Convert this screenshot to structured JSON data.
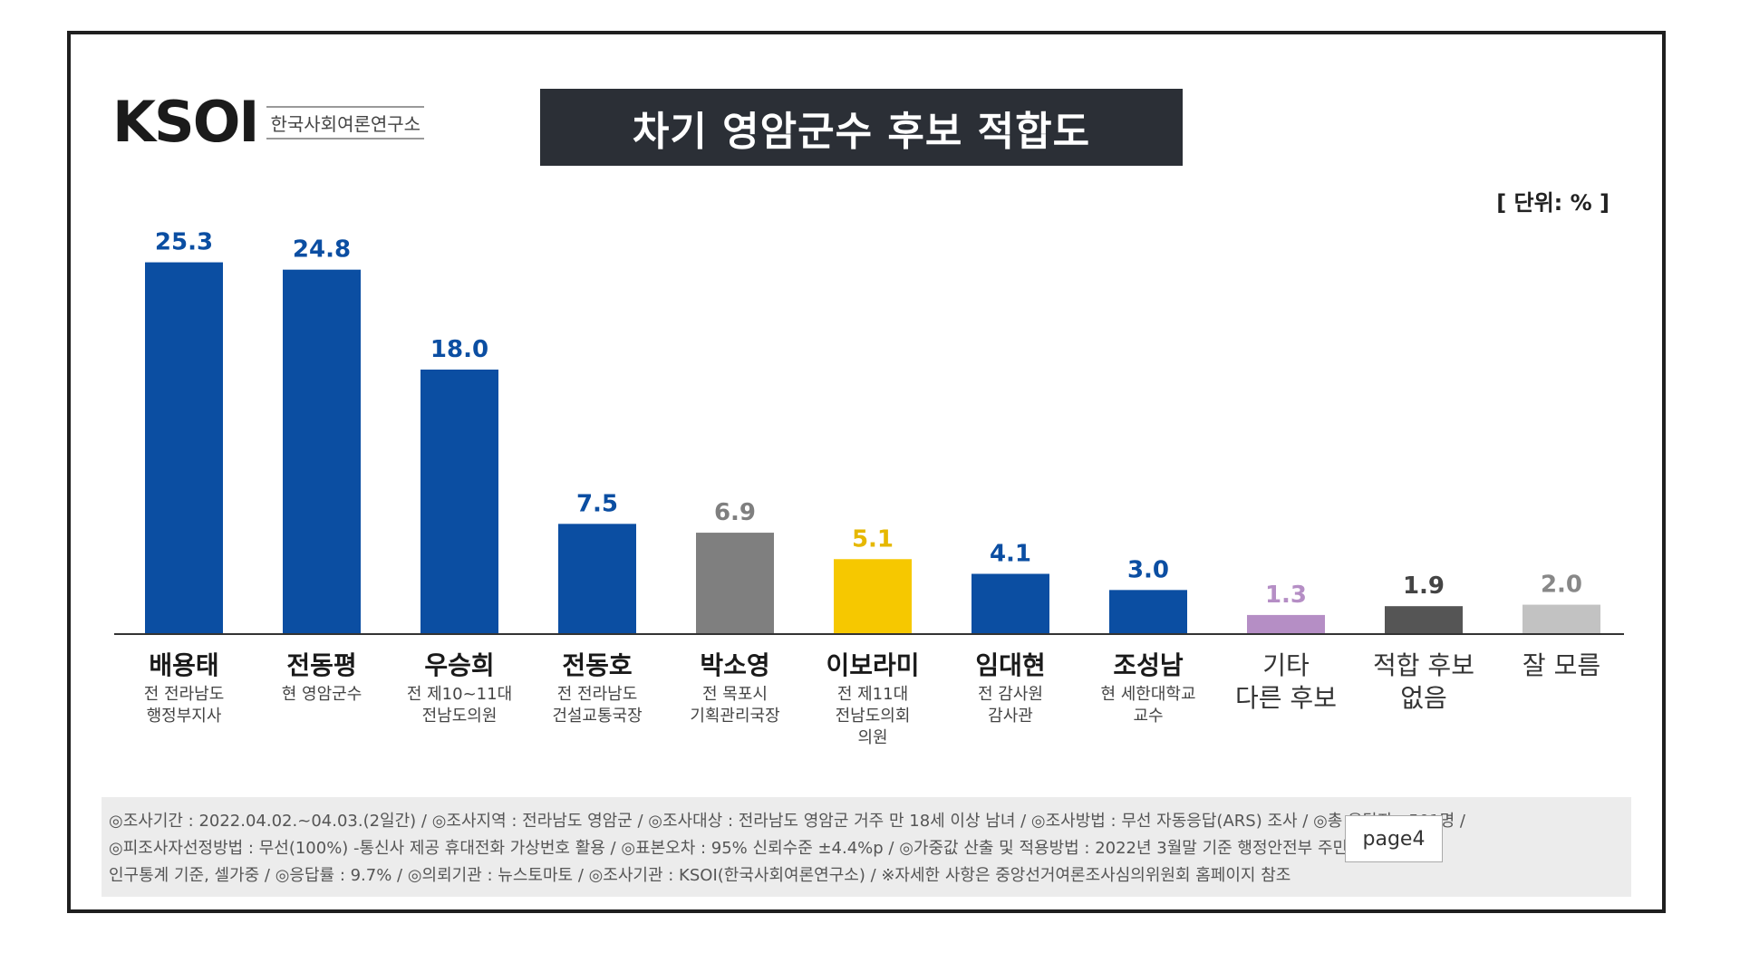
{
  "logo": {
    "mark": "KSOI",
    "subtitle": "한국사회여론연구소"
  },
  "title": "차기 영암군수 후보 적합도",
  "unit": "[ 단위: % ]",
  "colors": {
    "blue": "#0b4ea2",
    "gray": "#7f7f7f",
    "yellow": "#f6c800",
    "purple": "#b58ec5",
    "darkgray": "#555555",
    "lightgray": "#c2c2c2"
  },
  "chart_data": {
    "type": "bar",
    "categories": [
      "배용태",
      "전동평",
      "우승희",
      "전동호",
      "박소영",
      "이보라미",
      "임대현",
      "조성남",
      "기타 다른 후보",
      "적합 후보 없음",
      "잘 모름"
    ],
    "values": [
      25.3,
      24.8,
      18.0,
      7.5,
      6.9,
      5.1,
      4.1,
      3.0,
      1.3,
      1.9,
      2.0
    ],
    "value_labels": [
      "25.3",
      "24.8",
      "18.0",
      "7.5",
      "6.9",
      "5.1",
      "4.1",
      "3.0",
      "1.3",
      "1.9",
      "2.0"
    ],
    "bar_colors": [
      "#0b4ea2",
      "#0b4ea2",
      "#0b4ea2",
      "#0b4ea2",
      "#7f7f7f",
      "#f6c800",
      "#0b4ea2",
      "#0b4ea2",
      "#b58ec5",
      "#555555",
      "#c2c2c2"
    ],
    "label_colors": [
      "#0b4ea2",
      "#0b4ea2",
      "#0b4ea2",
      "#0b4ea2",
      "#7f7f7f",
      "#e6b800",
      "#0b4ea2",
      "#0b4ea2",
      "#b58ec5",
      "#444444",
      "#888888"
    ],
    "candidates": [
      {
        "name": "배용태",
        "desc": [
          "전 전라남도",
          "행정부지사"
        ],
        "bold": true
      },
      {
        "name": "전동평",
        "desc": [
          "현 영암군수"
        ],
        "bold": true
      },
      {
        "name": "우승희",
        "desc": [
          "전 제10~11대",
          "전남도의원"
        ],
        "bold": true
      },
      {
        "name": "전동호",
        "desc": [
          "전 전라남도",
          "건설교통국장"
        ],
        "bold": true
      },
      {
        "name": "박소영",
        "desc": [
          "전 목포시",
          "기획관리국장"
        ],
        "bold": true
      },
      {
        "name": "이보라미",
        "desc": [
          "전 제11대",
          "전남도의회",
          "의원"
        ],
        "bold": true
      },
      {
        "name": "임대현",
        "desc": [
          "전 감사원",
          "감사관"
        ],
        "bold": true
      },
      {
        "name": "조성남",
        "desc": [
          "현 세한대학교",
          "교수"
        ],
        "bold": true
      },
      {
        "name": "기타",
        "desc": [
          "다른 후보"
        ],
        "bold": false,
        "big_desc": true
      },
      {
        "name": "적합 후보",
        "desc": [
          "없음"
        ],
        "bold": false,
        "big_desc": true
      },
      {
        "name": "잘 모름",
        "desc": [],
        "bold": false
      }
    ],
    "ylim": [
      0,
      27
    ],
    "grid": false,
    "legend": "none"
  },
  "footer": {
    "line1": "◎조사기간 : 2022.04.02.~04.03.(2일간) / ◎조사지역 : 전라남도 영암군 / ◎조사대상 : 전라남도 영암군 거주 만 18세 이상 남녀 / ◎조사방법 : 무선 자동응답(ARS) 조사 / ◎총 응답자 : 501명 /",
    "line2": "◎피조사자선정방법 : 무선(100%) -통신사 제공 휴대전화 가상번호 활용 / ◎표본오차 : 95% 신뢰수준 ±4.4%p / ◎가중값 산출 및 적용방법 : 2022년 3월말 기준 행정안전부 주민등록",
    "line3": "인구통계 기준, 셀가중 / ◎응답률 : 9.7% / ◎의뢰기관 : 뉴스토마토 / ◎조사기관 : KSOI(한국사회여론연구소) / ※자세한 사항은 중앙선거여론조사심의위원회 홈페이지 참조"
  },
  "page_tag": "page4"
}
